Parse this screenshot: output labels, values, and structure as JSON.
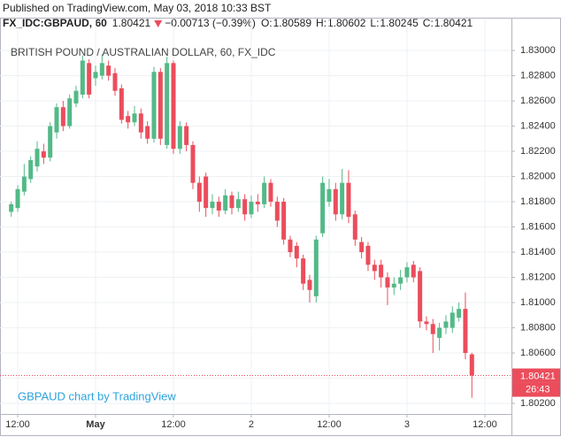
{
  "header": {
    "published": "Published on TradingView.com, May 03, 2018 10:33 BST",
    "symbol": "FX_IDC:GBPAUD, 60",
    "last": "1.80421",
    "change": "−0.00713 (−0.39%)",
    "ohlc": [
      {
        "key": "O:",
        "value": "1.80589"
      },
      {
        "key": "H:",
        "value": "1.80602"
      },
      {
        "key": "L:",
        "value": "1.80245"
      },
      {
        "key": "C:",
        "value": "1.80421"
      }
    ]
  },
  "chart_data": {
    "type": "candlestick",
    "title": "BRITISH POUND / AUSTRALIAN DOLLAR, 60, FX_IDC",
    "watermark": "GBPAUD chart by TradingView",
    "up_color": "#53b987",
    "down_color": "#eb4d5c",
    "grid": true,
    "open": [
      1.8172,
      1.8175,
      1.8188,
      1.8198,
      1.8208,
      1.822,
      1.8215,
      1.8235,
      1.8255,
      1.824,
      1.8258,
      1.8265,
      1.829,
      1.8278,
      1.828,
      1.8288,
      1.8282,
      1.827,
      1.8248,
      1.8243,
      1.825,
      1.824,
      1.823,
      1.8283,
      1.8225,
      1.829,
      1.8222,
      1.824,
      1.8225,
      1.8195,
      1.82,
      1.8175,
      1.818,
      1.8173,
      1.8185,
      1.8175,
      1.8182,
      1.817,
      1.818,
      1.8178,
      1.8195,
      1.818,
      1.818,
      1.815,
      1.8145,
      1.8135,
      1.8118,
      1.8105,
      1.8155,
      1.818,
      1.819,
      1.817,
      1.8195,
      1.817,
      1.8148,
      1.8145,
      1.813,
      1.813,
      1.812,
      1.8112,
      1.8115,
      1.812,
      1.813,
      1.8125,
      1.8085,
      1.8083,
      1.8072,
      1.808,
      1.808,
      1.8088,
      1.8095,
      1.80589
    ],
    "high": [
      1.818,
      1.8193,
      1.821,
      1.8216,
      1.8228,
      1.8226,
      1.8243,
      1.8258,
      1.826,
      1.8265,
      1.8272,
      1.8296,
      1.8293,
      1.8288,
      1.8297,
      1.8292,
      1.8286,
      1.8273,
      1.8252,
      1.8256,
      1.8254,
      1.8244,
      1.8287,
      1.8286,
      1.8295,
      1.8292,
      1.8244,
      1.8243,
      1.8228,
      1.82,
      1.8203,
      1.8186,
      1.8184,
      1.819,
      1.8188,
      1.8188,
      1.8186,
      1.8185,
      1.8186,
      1.82,
      1.8198,
      1.8184,
      1.8183,
      1.8153,
      1.8148,
      1.8138,
      1.8122,
      1.8153,
      1.82,
      1.8198,
      1.8195,
      1.8206,
      1.8205,
      1.8173,
      1.8152,
      1.8148,
      1.8134,
      1.8134,
      1.8124,
      1.812,
      1.8126,
      1.8132,
      1.8133,
      1.8128,
      1.8089,
      1.8087,
      1.8084,
      1.809,
      1.8097,
      1.81,
      1.8108,
      1.80602
    ],
    "low": [
      1.8168,
      1.8172,
      1.8185,
      1.8195,
      1.8204,
      1.821,
      1.8212,
      1.823,
      1.8236,
      1.8238,
      1.8255,
      1.8262,
      1.8262,
      1.8272,
      1.8277,
      1.8276,
      1.8264,
      1.8242,
      1.8238,
      1.824,
      1.823,
      1.8226,
      1.8227,
      1.8225,
      1.8222,
      1.8218,
      1.8218,
      1.822,
      1.819,
      1.8172,
      1.8168,
      1.817,
      1.8168,
      1.817,
      1.817,
      1.8172,
      1.8165,
      1.8167,
      1.8172,
      1.8175,
      1.8176,
      1.816,
      1.8146,
      1.8136,
      1.8128,
      1.811,
      1.81,
      1.81,
      1.8152,
      1.8176,
      1.8165,
      1.8166,
      1.8163,
      1.8145,
      1.8135,
      1.8125,
      1.8118,
      1.8112,
      1.8098,
      1.8106,
      1.811,
      1.8116,
      1.8116,
      1.808,
      1.8078,
      1.806,
      1.8062,
      1.8075,
      1.8076,
      1.8085,
      1.8055,
      1.80245
    ],
    "close": [
      1.8178,
      1.819,
      1.82,
      1.8213,
      1.8222,
      1.8215,
      1.824,
      1.8255,
      1.824,
      1.8262,
      1.8268,
      1.8292,
      1.8265,
      1.8283,
      1.829,
      1.828,
      1.8268,
      1.8245,
      1.8243,
      1.825,
      1.8235,
      1.823,
      1.8283,
      1.823,
      1.829,
      1.8222,
      1.824,
      1.8225,
      1.8195,
      1.818,
      1.8175,
      1.818,
      1.8173,
      1.8185,
      1.8175,
      1.8182,
      1.817,
      1.818,
      1.8178,
      1.8195,
      1.818,
      1.8165,
      1.815,
      1.814,
      1.8135,
      1.8115,
      1.811,
      1.815,
      1.8195,
      1.819,
      1.817,
      1.8195,
      1.8168,
      1.815,
      1.814,
      1.813,
      1.8125,
      1.812,
      1.8112,
      1.8115,
      1.812,
      1.8128,
      1.812,
      1.8085,
      1.8083,
      1.8075,
      1.808,
      1.8085,
      1.8092,
      1.8095,
      1.806,
      1.80421
    ],
    "xlim": [
      -1.73,
      77.1
    ],
    "xticks": [
      {
        "value": 1,
        "label": "12:00"
      },
      {
        "value": 13,
        "label": "May"
      },
      {
        "value": 25,
        "label": "12:00"
      },
      {
        "value": 37,
        "label": "2"
      },
      {
        "value": 49,
        "label": "12:00"
      },
      {
        "value": 61,
        "label": "3"
      },
      {
        "value": 73,
        "label": "12:00"
      }
    ],
    "ylim": [
      1.80116,
      1.83246
    ],
    "yticks": [
      {
        "value": 1.802,
        "label": "1.80200"
      },
      {
        "value": 1.804,
        "label": "1.80400"
      },
      {
        "value": 1.806,
        "label": "1.80600"
      },
      {
        "value": 1.808,
        "label": "1.80800"
      },
      {
        "value": 1.81,
        "label": "1.81000"
      },
      {
        "value": 1.812,
        "label": "1.81200"
      },
      {
        "value": 1.814,
        "label": "1.81400"
      },
      {
        "value": 1.816,
        "label": "1.81600"
      },
      {
        "value": 1.818,
        "label": "1.81800"
      },
      {
        "value": 1.82,
        "label": "1.82000"
      },
      {
        "value": 1.822,
        "label": "1.82200"
      },
      {
        "value": 1.824,
        "label": "1.82400"
      },
      {
        "value": 1.826,
        "label": "1.82600"
      },
      {
        "value": 1.828,
        "label": "1.82800"
      },
      {
        "value": 1.83,
        "label": "1.83000"
      }
    ],
    "price_line": {
      "value": 1.80421,
      "label": "1.80421"
    },
    "countdown": "26:43"
  }
}
